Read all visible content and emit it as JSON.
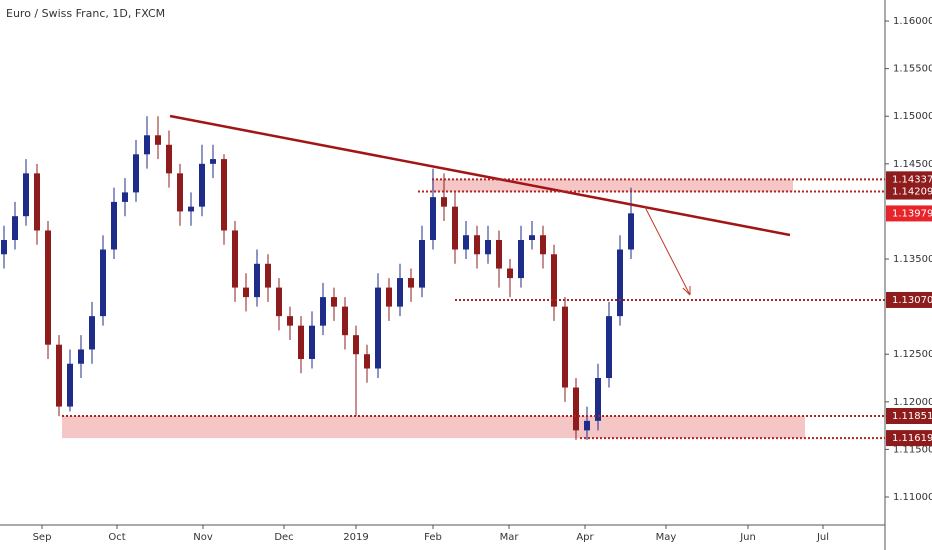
{
  "chart_data": {
    "type": "candlestick",
    "title": "Euro / Swiss Franc, 1D, FXCM",
    "candles": [
      [
        1.1355,
        1.1385,
        1.134,
        1.137
      ],
      [
        1.137,
        1.141,
        1.136,
        1.1395
      ],
      [
        1.1395,
        1.1455,
        1.1385,
        1.144
      ],
      [
        1.144,
        1.145,
        1.1365,
        1.138
      ],
      [
        1.138,
        1.139,
        1.1245,
        1.126
      ],
      [
        1.126,
        1.127,
        1.1185,
        1.1195
      ],
      [
        1.1195,
        1.1255,
        1.119,
        1.124
      ],
      [
        1.124,
        1.127,
        1.1225,
        1.1255
      ],
      [
        1.1255,
        1.1305,
        1.124,
        1.129
      ],
      [
        1.129,
        1.1375,
        1.128,
        1.136
      ],
      [
        1.136,
        1.1425,
        1.135,
        1.141
      ],
      [
        1.141,
        1.1435,
        1.1395,
        1.142
      ],
      [
        1.142,
        1.1475,
        1.141,
        1.146
      ],
      [
        1.146,
        1.15,
        1.1445,
        1.148
      ],
      [
        1.148,
        1.15,
        1.1455,
        1.147
      ],
      [
        1.147,
        1.1485,
        1.1425,
        1.144
      ],
      [
        1.144,
        1.145,
        1.1385,
        1.14
      ],
      [
        1.14,
        1.142,
        1.1385,
        1.1405
      ],
      [
        1.1405,
        1.147,
        1.1395,
        1.145
      ],
      [
        1.145,
        1.147,
        1.1435,
        1.1455
      ],
      [
        1.1455,
        1.146,
        1.1365,
        1.138
      ],
      [
        1.138,
        1.139,
        1.1305,
        1.132
      ],
      [
        1.132,
        1.1335,
        1.1295,
        1.131
      ],
      [
        1.131,
        1.136,
        1.13,
        1.1345
      ],
      [
        1.1345,
        1.1355,
        1.1305,
        1.132
      ],
      [
        1.132,
        1.133,
        1.1275,
        1.129
      ],
      [
        1.129,
        1.13,
        1.1265,
        1.128
      ],
      [
        1.128,
        1.129,
        1.123,
        1.1245
      ],
      [
        1.1245,
        1.1295,
        1.1235,
        1.128
      ],
      [
        1.128,
        1.1325,
        1.127,
        1.131
      ],
      [
        1.131,
        1.132,
        1.1285,
        1.13
      ],
      [
        1.13,
        1.131,
        1.1255,
        1.127
      ],
      [
        1.127,
        1.128,
        1.1185,
        1.125
      ],
      [
        1.125,
        1.126,
        1.122,
        1.1235
      ],
      [
        1.1235,
        1.1335,
        1.1225,
        1.132
      ],
      [
        1.132,
        1.133,
        1.1285,
        1.13
      ],
      [
        1.13,
        1.1345,
        1.129,
        1.133
      ],
      [
        1.133,
        1.134,
        1.1305,
        1.132
      ],
      [
        1.132,
        1.1385,
        1.131,
        1.137
      ],
      [
        1.137,
        1.1445,
        1.136,
        1.1415
      ],
      [
        1.1415,
        1.144,
        1.139,
        1.1405
      ],
      [
        1.1405,
        1.142,
        1.1345,
        1.136
      ],
      [
        1.136,
        1.139,
        1.135,
        1.1375
      ],
      [
        1.1375,
        1.1385,
        1.134,
        1.1355
      ],
      [
        1.1355,
        1.1385,
        1.1345,
        1.137
      ],
      [
        1.137,
        1.138,
        1.132,
        1.134
      ],
      [
        1.134,
        1.135,
        1.131,
        1.133
      ],
      [
        1.133,
        1.1385,
        1.132,
        1.137
      ],
      [
        1.137,
        1.139,
        1.136,
        1.1375
      ],
      [
        1.1375,
        1.1385,
        1.134,
        1.1355
      ],
      [
        1.1355,
        1.1365,
        1.1285,
        1.13
      ],
      [
        1.13,
        1.131,
        1.12,
        1.1215
      ],
      [
        1.1215,
        1.1225,
        1.116,
        1.117
      ],
      [
        1.117,
        1.1195,
        1.116,
        1.118
      ],
      [
        1.118,
        1.124,
        1.117,
        1.1225
      ],
      [
        1.1225,
        1.1305,
        1.1215,
        1.129
      ],
      [
        1.129,
        1.1375,
        1.128,
        1.136
      ],
      [
        1.136,
        1.1425,
        1.135,
        1.1398
      ]
    ],
    "colors": {
      "up": "#1f2d8a",
      "down": "#8e1c1c"
    },
    "ylim": [
      1.10706,
      1.16221
    ],
    "yticks": [
      {
        "value": 1.16,
        "label": "1.16000"
      },
      {
        "value": 1.155,
        "label": "1.15500"
      },
      {
        "value": 1.15,
        "label": "1.15000"
      },
      {
        "value": 1.145,
        "label": "1.14500"
      },
      {
        "value": 1.135,
        "label": "1.13500"
      },
      {
        "value": 1.125,
        "label": "1.12500"
      },
      {
        "value": 1.12,
        "label": "1.12000"
      },
      {
        "value": 1.115,
        "label": "1.11500"
      },
      {
        "value": 1.11,
        "label": "1.11000"
      }
    ],
    "x_labels": [
      "Sep",
      "Oct",
      "Nov",
      "Dec",
      "2019",
      "Feb",
      "Mar",
      "Apr",
      "May",
      "Jun",
      "Jul"
    ],
    "levels": [
      {
        "value": 1.14337,
        "label": "1.14337"
      },
      {
        "value": 1.14209,
        "label": "1.14209"
      },
      {
        "value": 1.13979,
        "label": "1.13979"
      },
      {
        "value": 1.1307,
        "label": "1.13070"
      },
      {
        "value": 1.11851,
        "label": "1.11851"
      },
      {
        "value": 1.11619,
        "label": "1.11619"
      }
    ]
  }
}
